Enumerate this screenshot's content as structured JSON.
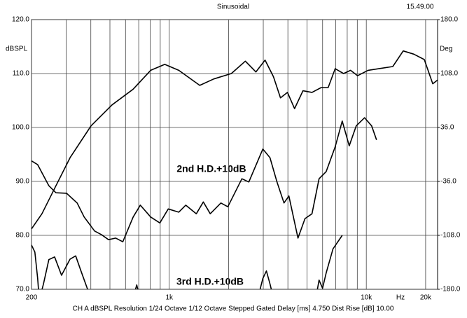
{
  "chart_data": {
    "type": "line",
    "title": "Sinusoidal",
    "timestamp": "15.49.00",
    "footer": "CH A   dBSPL   Resolution 1/24 Octave   1/12 Octave   Stepped   Gated   Delay [ms] 4.750   Dist Rise [dB] 10.00",
    "y_label": "dBSPL",
    "y2_label": "Deg",
    "x_label": "Hz",
    "annotations": [
      "2nd H.D.+10dB",
      "3rd H.D.+10dB"
    ],
    "xscale": "log",
    "grid": true,
    "xlim": [
      200,
      23000
    ],
    "xticks": [
      200,
      {
        "value": 1000,
        "label": "1k"
      },
      {
        "value": 10000,
        "label": "10k"
      },
      {
        "value": 20000,
        "label": "20k"
      }
    ],
    "xminor": [
      300,
      400,
      500,
      600,
      700,
      800,
      900,
      2000,
      3000,
      4000,
      5000,
      6000,
      7000,
      8000,
      9000
    ],
    "ylim": [
      70,
      120
    ],
    "yticks": [
      {
        "value": 70,
        "label": "70.0"
      },
      {
        "value": 80,
        "label": "80.0"
      },
      {
        "value": 90,
        "label": "90.0"
      },
      {
        "value": 100,
        "label": "100.0"
      },
      {
        "value": 110,
        "label": "110.0"
      },
      {
        "value": 120,
        "label": "120.0"
      }
    ],
    "y2lim": [
      -180,
      180
    ],
    "y2ticks": [
      {
        "value": -180,
        "label": "-180.0"
      },
      {
        "value": -108,
        "label": "-108.0"
      },
      {
        "value": -36,
        "label": "-36.0"
      },
      {
        "value": 36,
        "label": "36.0"
      },
      {
        "value": 108,
        "label": "108.0"
      },
      {
        "value": 180,
        "label": "180.0"
      }
    ],
    "series": [
      {
        "color": "#000000",
        "x": [
          200,
          226,
          266,
          314,
          401,
          513,
          656,
          805,
          949,
          1117,
          1428,
          1683,
          2066,
          2433,
          2753,
          3063,
          3380,
          3667,
          3981,
          4324,
          4769,
          5300,
          5903,
          6403,
          6951,
          7669,
          8320,
          9030,
          10210,
          11560,
          13620,
          15390,
          17410,
          19690,
          21730,
          23000
        ],
        "values": [
          81.2,
          84,
          89.2,
          94.4,
          100.3,
          104.2,
          107.1,
          110.6,
          111.7,
          110.6,
          107.8,
          109,
          110,
          112.3,
          110.3,
          112.5,
          109.4,
          105.5,
          106.5,
          103.5,
          106.8,
          106.5,
          107.4,
          107.4,
          110.9,
          110,
          110.6,
          109.6,
          110.6,
          110.9,
          111.3,
          114.2,
          113.6,
          112.6,
          108.1,
          108.8
        ]
      },
      {
        "name": "2nd H.D.+10dB",
        "color": "#000000",
        "x": [
          200,
          215,
          245,
          266,
          301,
          341,
          370,
          418,
          454,
          492,
          535,
          581,
          656,
          713,
          805,
          896,
          988,
          1117,
          1213,
          1372,
          1489,
          1615,
          1828,
          1983,
          2338,
          2535,
          2986,
          3244,
          3521,
          3820,
          4046,
          4500,
          4886,
          5300,
          5755,
          6255,
          6951,
          7550,
          8190,
          8890,
          9800,
          10640,
          11270
        ],
        "values": [
          93.8,
          93.1,
          89.2,
          87.9,
          87.8,
          86,
          83.4,
          80.8,
          80.1,
          79.2,
          79.5,
          78.8,
          83.4,
          85.6,
          83.4,
          82.3,
          84.9,
          84.3,
          85.6,
          84,
          86.2,
          84,
          86,
          85.3,
          90.5,
          89.9,
          96,
          94.4,
          89.9,
          86,
          87.3,
          79.5,
          83.1,
          84,
          90.5,
          91.8,
          96.4,
          101.2,
          96.6,
          100.3,
          101.8,
          100.3,
          97.7
        ]
      },
      {
        "name": "3rd H.D.+10dB",
        "color": "#000000",
        "x": [
          200,
          208,
          215,
          219,
          230,
          245,
          262,
          284,
          314,
          335,
          355,
          385,
          418,
          650,
          684,
          713,
          2800,
          2986,
          3111,
          3244,
          3400,
          5521,
          5755,
          6000,
          6255,
          6777,
          7550
        ],
        "values": [
          78.2,
          76.9,
          72,
          68,
          71,
          75.5,
          76,
          72.6,
          75.6,
          76.2,
          73.6,
          70,
          68,
          68,
          70.8,
          68,
          68,
          72,
          73.4,
          71,
          68,
          68,
          71.7,
          70.2,
          73,
          77.5,
          80
        ]
      }
    ]
  }
}
